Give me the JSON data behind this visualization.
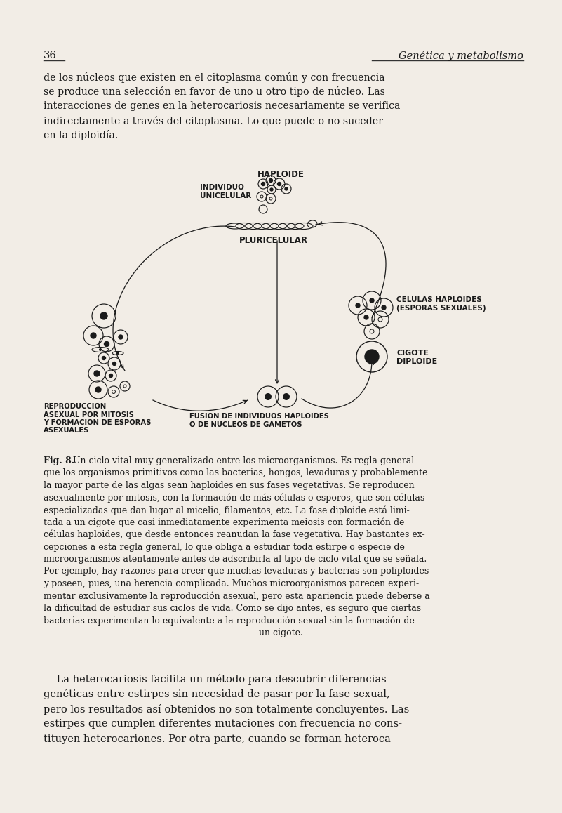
{
  "bg_color": "#f2ede6",
  "page_number": "36",
  "header_right": "Genética y metabolismo",
  "intro_lines": [
    "de los núcleos que existen en el citoplasma común y con frecuencia",
    "se produce una selección en favor de uno u otro tipo de núcleo. Las",
    "interacciones de genes en la heterocariosis necesariamente se verifica",
    "indirectamente a través del citoplasma. Lo que puede o no suceder",
    "en la diploidía."
  ],
  "fig_caption": [
    [
      "Fig. 8.",
      "bold"
    ],
    [
      "  Un ciclo vital muy generalizado entre los microorganismos. Es regla general",
      "normal"
    ],
    [
      "que los organismos primitivos como las bacterias, hongos, levaduras y probablemente",
      "normal"
    ],
    [
      "la mayor parte de las algas sean haploides en sus fases vegetativas. Se reproducen",
      "normal"
    ],
    [
      "asexualmente por mitosis, con la formación de más células o esporos, que son células",
      "normal"
    ],
    [
      "especializadas que dan lugar al micelio, filamentos, etc. La fase diploide está limi-",
      "normal"
    ],
    [
      "tada a un cigote que casi inmediatamente experimenta meiosis con formación de",
      "normal"
    ],
    [
      "células haploides, que desde entonces reanudan la fase vegetativa. Hay bastantes ex-",
      "normal"
    ],
    [
      "cepciones a esta regla general, lo que obliga a estudiar toda estirpe o especie de",
      "normal"
    ],
    [
      "microorganismos atentamente antes de adscribirla al tipo de ciclo vital que se señala.",
      "normal"
    ],
    [
      "Por ejemplo, hay razones para creer que muchas levaduras y bacterias son poliploides",
      "normal"
    ],
    [
      "y poseen, pues, una herencia complicada. Muchos microorganismos parecen experi-",
      "normal"
    ],
    [
      "mentar exclusivamente la reproducción asexual, pero esta apariencia puede deberse a",
      "normal"
    ],
    [
      "la dificultad de estudiar sus ciclos de vida. Como se dijo antes, es seguro que ciertas",
      "normal"
    ],
    [
      "bacterias experimentan lo equivalente a la reproducción sexual sin la formación de",
      "normal"
    ],
    [
      "un cigote.",
      "center"
    ]
  ],
  "bottom_lines": [
    [
      "    La heterocariosis facilita un método para descubrir diferencias",
      "normal"
    ],
    [
      "genéticas entre estirpes sin necesidad de pasar por la fase sexual,",
      "normal"
    ],
    [
      "pero los resultados así obtenidos no son totalmente concluyentes. Las",
      "normal"
    ],
    [
      "estirpes que cumplen diferentes mutaciones con frecuencia no cons-",
      "normal"
    ],
    [
      "tituyen heterocariones. Por otra parte, cuando se forman heteroca-",
      "normal"
    ]
  ]
}
